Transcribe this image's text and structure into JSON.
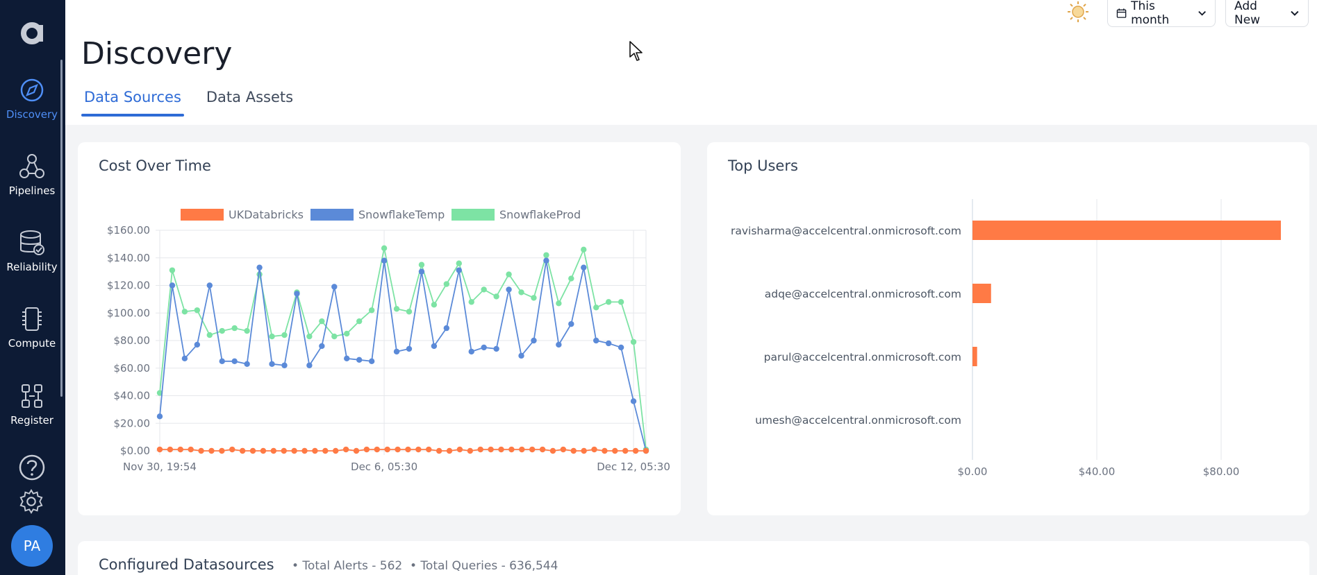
{
  "sidebar": {
    "logo": "a",
    "items": [
      {
        "label": "Discovery",
        "icon": "compass-icon",
        "active": true
      },
      {
        "label": "Pipelines",
        "icon": "pipelines-icon",
        "active": false
      },
      {
        "label": "Reliability",
        "icon": "database-check-icon",
        "active": false
      },
      {
        "label": "Compute",
        "icon": "chip-icon",
        "active": false
      },
      {
        "label": "Register",
        "icon": "register-icon",
        "active": false
      }
    ],
    "help_icon": "help-icon",
    "settings_icon": "gear-icon",
    "avatar_initials": "PA"
  },
  "topbar": {
    "theme_icon": "sun-icon",
    "date_range_label": "This month",
    "add_new_label": "Add New"
  },
  "page": {
    "title": "Discovery",
    "tabs": [
      {
        "label": "Data Sources",
        "active": true
      },
      {
        "label": "Data Assets",
        "active": false
      }
    ]
  },
  "cost_card": {
    "title": "Cost Over Time"
  },
  "users_card": {
    "title": "Top Users"
  },
  "datasources_card": {
    "title": "Configured Datasources",
    "total_alerts": "• Total Alerts - 562",
    "total_queries": "• Total Queries - 636,544"
  },
  "colors": {
    "sidebar_bg": "#0d1b35",
    "accent": "#2e6bd6",
    "ukdatabricks": "#ff7a45",
    "snowflaketemp": "#5b8ad8",
    "snowflakeprod": "#7de3a4"
  },
  "chart_data": [
    {
      "type": "line",
      "title": "Cost Over Time",
      "x_tick_labels": [
        "Nov 30, 19:54",
        "Dec 6, 05:30",
        "Dec 12, 05:30"
      ],
      "y_tick_labels": [
        "$0.00",
        "$20.00",
        "$40.00",
        "$60.00",
        "$80.00",
        "$100.00",
        "$120.00",
        "$140.00",
        "$160.00"
      ],
      "ylim": [
        0,
        160
      ],
      "grid": true,
      "legend": "top",
      "series": [
        {
          "name": "UKDatabricks",
          "color": "#ff7a45",
          "values": [
            1,
            1,
            1,
            1,
            0,
            0,
            0,
            1,
            0,
            0,
            0,
            0,
            0,
            0,
            0,
            0,
            0,
            0,
            1,
            0,
            1,
            1,
            1,
            1,
            1,
            1,
            1,
            0,
            0,
            1,
            0,
            1,
            1,
            1,
            1,
            1,
            1,
            1,
            0,
            1,
            0,
            0,
            1,
            0,
            0,
            0,
            0,
            0
          ]
        },
        {
          "name": "SnowflakeTemp",
          "color": "#5b8ad8",
          "values": [
            25,
            120,
            67,
            77,
            120,
            65,
            65,
            63,
            133,
            63,
            62,
            114,
            62,
            76,
            119,
            67,
            66,
            65,
            138,
            72,
            74,
            130,
            76,
            89,
            131,
            72,
            75,
            74,
            117,
            69,
            80,
            138,
            77,
            92,
            133,
            80,
            78,
            75,
            36,
            0
          ]
        },
        {
          "name": "SnowflakeProd",
          "color": "#7de3a4",
          "values": [
            42,
            131,
            101,
            102,
            84,
            87,
            89,
            87,
            128,
            83,
            84,
            115,
            83,
            94,
            83,
            85,
            94,
            102,
            147,
            103,
            101,
            135,
            106,
            121,
            136,
            108,
            117,
            112,
            128,
            115,
            111,
            142,
            107,
            125,
            146,
            104,
            108,
            108,
            79,
            1
          ]
        }
      ]
    },
    {
      "type": "bar",
      "orientation": "horizontal",
      "title": "Top Users",
      "categories": [
        "ravisharma@accelcentral.onmicrosoft.com",
        "adqe@accelcentral.onmicrosoft.com",
        "parul@accelcentral.onmicrosoft.com",
        "umesh@accelcentral.onmicrosoft.com"
      ],
      "values": [
        99.5,
        6,
        1.5,
        0
      ],
      "x_tick_labels": [
        "$0.00",
        "$40.00",
        "$80.00"
      ],
      "xlim": [
        0,
        100
      ],
      "grid": true,
      "color": "#ff7a45"
    }
  ]
}
